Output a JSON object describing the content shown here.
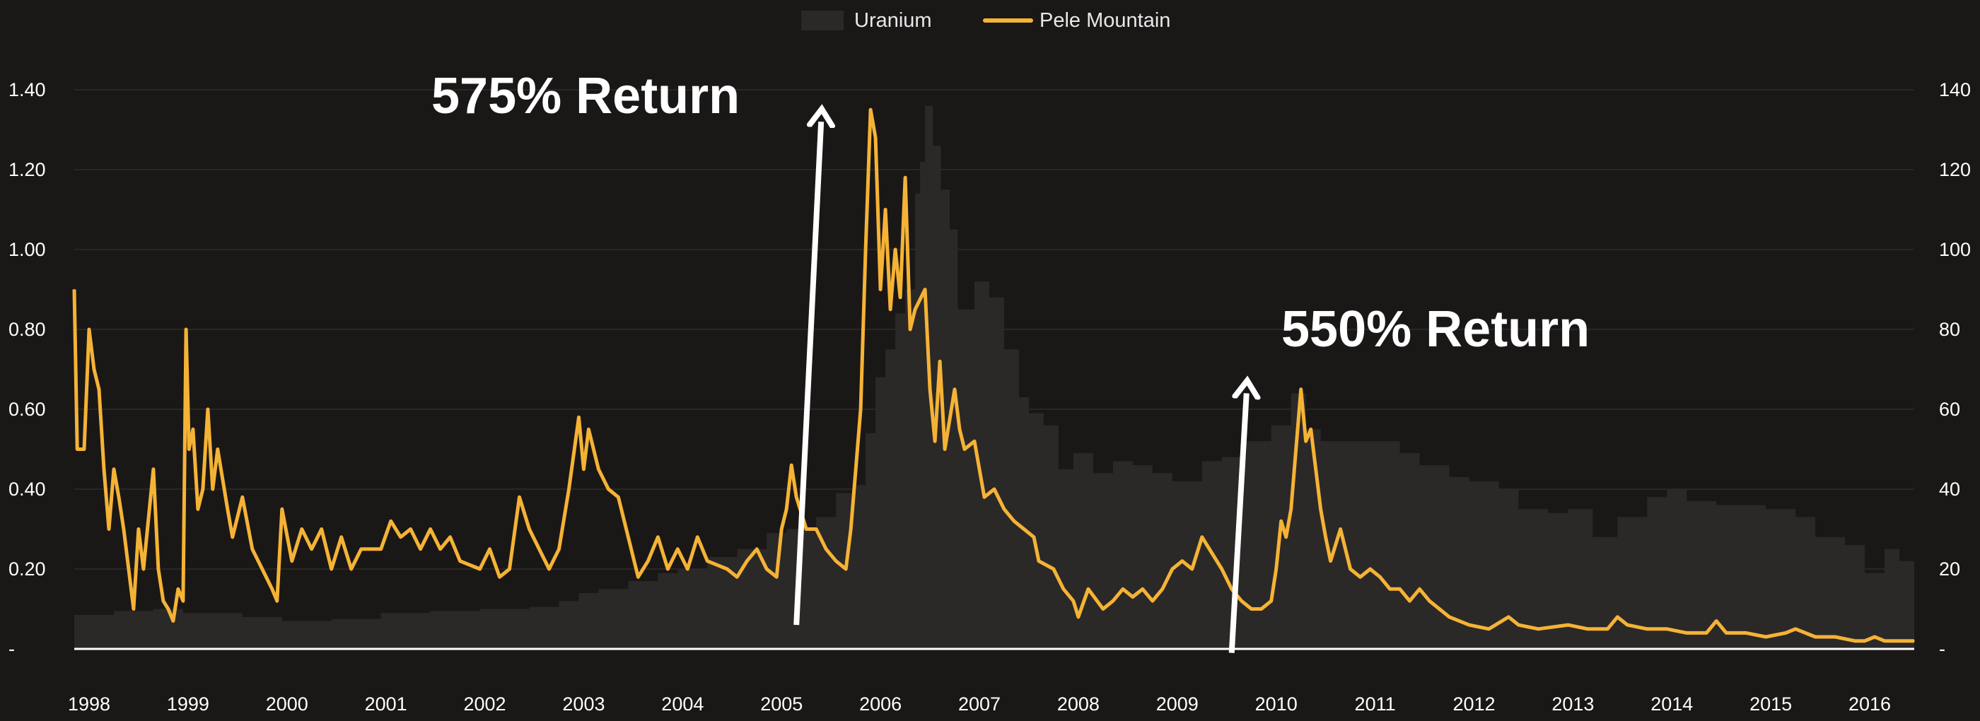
{
  "chart_data": {
    "type": "line",
    "title": "",
    "xlabel": "",
    "ylabel_left": "",
    "ylabel_right": "",
    "x_range": [
      1997.9,
      2016.5
    ],
    "ylim_left": [
      0,
      1.4
    ],
    "ylim_right": [
      0,
      140
    ],
    "grid": true,
    "legend_position": "top-center",
    "x_tick_labels": [
      "1998",
      "1999",
      "2000",
      "2001",
      "2002",
      "2003",
      "2004",
      "2005",
      "2006",
      "2007",
      "2008",
      "2009",
      "2010",
      "2011",
      "2012",
      "2013",
      "2014",
      "2015",
      "2016"
    ],
    "y_left_tick_labels": [
      "-",
      "0.20",
      "0.40",
      "0.60",
      "0.80",
      "1.00",
      "1.20",
      "1.40"
    ],
    "y_right_tick_labels": [
      "-",
      "20",
      "40",
      "60",
      "80",
      "100",
      "120",
      "140"
    ],
    "legend": [
      {
        "name": "Uranium",
        "color": "#2b2828"
      },
      {
        "name": "Pele Mountain",
        "color": "#f5b335"
      }
    ],
    "series": [
      {
        "name": "Uranium",
        "kind": "area-step",
        "axis": "right",
        "color": "#2b2828",
        "points": [
          [
            1997.9,
            8.5
          ],
          [
            1998.3,
            9.5
          ],
          [
            1998.7,
            10
          ],
          [
            1999.0,
            9
          ],
          [
            1999.3,
            9
          ],
          [
            1999.6,
            8
          ],
          [
            2000.0,
            7
          ],
          [
            2000.5,
            7.5
          ],
          [
            2001.0,
            9
          ],
          [
            2001.5,
            9.5
          ],
          [
            2002.0,
            10
          ],
          [
            2002.5,
            10.5
          ],
          [
            2002.8,
            12
          ],
          [
            2003.0,
            14
          ],
          [
            2003.2,
            15
          ],
          [
            2003.5,
            17
          ],
          [
            2003.8,
            19
          ],
          [
            2004.0,
            20
          ],
          [
            2004.3,
            23
          ],
          [
            2004.6,
            25
          ],
          [
            2004.9,
            29
          ],
          [
            2005.1,
            30
          ],
          [
            2005.4,
            33
          ],
          [
            2005.6,
            39
          ],
          [
            2005.8,
            41
          ],
          [
            2005.9,
            54
          ],
          [
            2006.0,
            68
          ],
          [
            2006.1,
            75
          ],
          [
            2006.2,
            84
          ],
          [
            2006.3,
            90
          ],
          [
            2006.4,
            114
          ],
          [
            2006.45,
            122
          ],
          [
            2006.5,
            136
          ],
          [
            2006.58,
            126
          ],
          [
            2006.66,
            115
          ],
          [
            2006.75,
            105
          ],
          [
            2006.83,
            85
          ],
          [
            2006.92,
            85
          ],
          [
            2007.0,
            92
          ],
          [
            2007.15,
            88
          ],
          [
            2007.3,
            75
          ],
          [
            2007.45,
            63
          ],
          [
            2007.55,
            59
          ],
          [
            2007.7,
            56
          ],
          [
            2007.85,
            45
          ],
          [
            2008.0,
            49
          ],
          [
            2008.2,
            44
          ],
          [
            2008.4,
            47
          ],
          [
            2008.6,
            46
          ],
          [
            2008.8,
            44
          ],
          [
            2009.0,
            42
          ],
          [
            2009.15,
            42
          ],
          [
            2009.3,
            47
          ],
          [
            2009.5,
            48
          ],
          [
            2009.75,
            52
          ],
          [
            2010.0,
            56
          ],
          [
            2010.2,
            64
          ],
          [
            2010.35,
            55
          ],
          [
            2010.5,
            52
          ],
          [
            2010.7,
            52
          ],
          [
            2011.0,
            52
          ],
          [
            2011.3,
            49
          ],
          [
            2011.5,
            46
          ],
          [
            2011.8,
            43
          ],
          [
            2012.0,
            42
          ],
          [
            2012.3,
            40
          ],
          [
            2012.5,
            35
          ],
          [
            2012.8,
            34
          ],
          [
            2013.0,
            35
          ],
          [
            2013.25,
            28
          ],
          [
            2013.5,
            33
          ],
          [
            2013.8,
            38
          ],
          [
            2014.0,
            40
          ],
          [
            2014.2,
            37
          ],
          [
            2014.5,
            36
          ],
          [
            2014.8,
            36
          ],
          [
            2015.0,
            35
          ],
          [
            2015.3,
            33
          ],
          [
            2015.5,
            28
          ],
          [
            2015.8,
            26
          ],
          [
            2016.0,
            19
          ],
          [
            2016.2,
            25
          ],
          [
            2016.35,
            22
          ],
          [
            2016.5,
            20
          ]
        ]
      },
      {
        "name": "Pele Mountain",
        "kind": "line",
        "axis": "left",
        "color": "#f5b335",
        "points": [
          [
            1997.9,
            0.9
          ],
          [
            1997.93,
            0.5
          ],
          [
            1998.0,
            0.5
          ],
          [
            1998.05,
            0.8
          ],
          [
            1998.1,
            0.7
          ],
          [
            1998.15,
            0.65
          ],
          [
            1998.2,
            0.45
          ],
          [
            1998.25,
            0.3
          ],
          [
            1998.3,
            0.45
          ],
          [
            1998.35,
            0.38
          ],
          [
            1998.4,
            0.3
          ],
          [
            1998.45,
            0.2
          ],
          [
            1998.5,
            0.1
          ],
          [
            1998.55,
            0.3
          ],
          [
            1998.6,
            0.2
          ],
          [
            1998.7,
            0.45
          ],
          [
            1998.75,
            0.2
          ],
          [
            1998.8,
            0.12
          ],
          [
            1998.85,
            0.1
          ],
          [
            1998.9,
            0.07
          ],
          [
            1998.95,
            0.15
          ],
          [
            1999.0,
            0.12
          ],
          [
            1999.03,
            0.8
          ],
          [
            1999.06,
            0.5
          ],
          [
            1999.1,
            0.55
          ],
          [
            1999.15,
            0.35
          ],
          [
            1999.2,
            0.4
          ],
          [
            1999.25,
            0.6
          ],
          [
            1999.3,
            0.4
          ],
          [
            1999.35,
            0.5
          ],
          [
            1999.45,
            0.35
          ],
          [
            1999.5,
            0.28
          ],
          [
            1999.6,
            0.38
          ],
          [
            1999.7,
            0.25
          ],
          [
            1999.8,
            0.2
          ],
          [
            1999.9,
            0.15
          ],
          [
            1999.95,
            0.12
          ],
          [
            2000.0,
            0.35
          ],
          [
            2000.1,
            0.22
          ],
          [
            2000.2,
            0.3
          ],
          [
            2000.3,
            0.25
          ],
          [
            2000.4,
            0.3
          ],
          [
            2000.5,
            0.2
          ],
          [
            2000.6,
            0.28
          ],
          [
            2000.7,
            0.2
          ],
          [
            2000.8,
            0.25
          ],
          [
            2001.0,
            0.25
          ],
          [
            2001.1,
            0.32
          ],
          [
            2001.2,
            0.28
          ],
          [
            2001.3,
            0.3
          ],
          [
            2001.4,
            0.25
          ],
          [
            2001.5,
            0.3
          ],
          [
            2001.6,
            0.25
          ],
          [
            2001.7,
            0.28
          ],
          [
            2001.8,
            0.22
          ],
          [
            2002.0,
            0.2
          ],
          [
            2002.1,
            0.25
          ],
          [
            2002.2,
            0.18
          ],
          [
            2002.3,
            0.2
          ],
          [
            2002.4,
            0.38
          ],
          [
            2002.5,
            0.3
          ],
          [
            2002.6,
            0.25
          ],
          [
            2002.7,
            0.2
          ],
          [
            2002.8,
            0.25
          ],
          [
            2002.9,
            0.4
          ],
          [
            2003.0,
            0.58
          ],
          [
            2003.05,
            0.45
          ],
          [
            2003.1,
            0.55
          ],
          [
            2003.2,
            0.45
          ],
          [
            2003.3,
            0.4
          ],
          [
            2003.4,
            0.38
          ],
          [
            2003.5,
            0.28
          ],
          [
            2003.6,
            0.18
          ],
          [
            2003.7,
            0.22
          ],
          [
            2003.8,
            0.28
          ],
          [
            2003.9,
            0.2
          ],
          [
            2004.0,
            0.25
          ],
          [
            2004.1,
            0.2
          ],
          [
            2004.2,
            0.28
          ],
          [
            2004.3,
            0.22
          ],
          [
            2004.5,
            0.2
          ],
          [
            2004.6,
            0.18
          ],
          [
            2004.7,
            0.22
          ],
          [
            2004.8,
            0.25
          ],
          [
            2004.9,
            0.2
          ],
          [
            2005.0,
            0.18
          ],
          [
            2005.05,
            0.3
          ],
          [
            2005.1,
            0.35
          ],
          [
            2005.15,
            0.46
          ],
          [
            2005.2,
            0.38
          ],
          [
            2005.3,
            0.3
          ],
          [
            2005.4,
            0.3
          ],
          [
            2005.5,
            0.25
          ],
          [
            2005.6,
            0.22
          ],
          [
            2005.7,
            0.2
          ],
          [
            2005.75,
            0.3
          ],
          [
            2005.8,
            0.45
          ],
          [
            2005.85,
            0.6
          ],
          [
            2005.9,
            1.0
          ],
          [
            2005.95,
            1.35
          ],
          [
            2006.0,
            1.28
          ],
          [
            2006.05,
            0.9
          ],
          [
            2006.1,
            1.1
          ],
          [
            2006.15,
            0.85
          ],
          [
            2006.2,
            1.0
          ],
          [
            2006.25,
            0.88
          ],
          [
            2006.3,
            1.18
          ],
          [
            2006.35,
            0.8
          ],
          [
            2006.4,
            0.85
          ],
          [
            2006.5,
            0.9
          ],
          [
            2006.55,
            0.65
          ],
          [
            2006.6,
            0.52
          ],
          [
            2006.65,
            0.72
          ],
          [
            2006.7,
            0.5
          ],
          [
            2006.8,
            0.65
          ],
          [
            2006.85,
            0.55
          ],
          [
            2006.9,
            0.5
          ],
          [
            2007.0,
            0.52
          ],
          [
            2007.1,
            0.38
          ],
          [
            2007.2,
            0.4
          ],
          [
            2007.3,
            0.35
          ],
          [
            2007.4,
            0.32
          ],
          [
            2007.5,
            0.3
          ],
          [
            2007.6,
            0.28
          ],
          [
            2007.65,
            0.22
          ],
          [
            2007.8,
            0.2
          ],
          [
            2007.9,
            0.15
          ],
          [
            2008.0,
            0.12
          ],
          [
            2008.05,
            0.08
          ],
          [
            2008.15,
            0.15
          ],
          [
            2008.3,
            0.1
          ],
          [
            2008.4,
            0.12
          ],
          [
            2008.5,
            0.15
          ],
          [
            2008.6,
            0.13
          ],
          [
            2008.7,
            0.15
          ],
          [
            2008.8,
            0.12
          ],
          [
            2008.9,
            0.15
          ],
          [
            2009.0,
            0.2
          ],
          [
            2009.1,
            0.22
          ],
          [
            2009.2,
            0.2
          ],
          [
            2009.3,
            0.28
          ],
          [
            2009.4,
            0.24
          ],
          [
            2009.5,
            0.2
          ],
          [
            2009.6,
            0.15
          ],
          [
            2009.7,
            0.12
          ],
          [
            2009.8,
            0.1
          ],
          [
            2009.9,
            0.1
          ],
          [
            2010.0,
            0.12
          ],
          [
            2010.05,
            0.2
          ],
          [
            2010.1,
            0.32
          ],
          [
            2010.15,
            0.28
          ],
          [
            2010.2,
            0.35
          ],
          [
            2010.25,
            0.5
          ],
          [
            2010.3,
            0.65
          ],
          [
            2010.35,
            0.52
          ],
          [
            2010.4,
            0.55
          ],
          [
            2010.45,
            0.45
          ],
          [
            2010.5,
            0.35
          ],
          [
            2010.55,
            0.28
          ],
          [
            2010.6,
            0.22
          ],
          [
            2010.7,
            0.3
          ],
          [
            2010.8,
            0.2
          ],
          [
            2010.9,
            0.18
          ],
          [
            2011.0,
            0.2
          ],
          [
            2011.1,
            0.18
          ],
          [
            2011.2,
            0.15
          ],
          [
            2011.3,
            0.15
          ],
          [
            2011.4,
            0.12
          ],
          [
            2011.5,
            0.15
          ],
          [
            2011.6,
            0.12
          ],
          [
            2011.7,
            0.1
          ],
          [
            2011.8,
            0.08
          ],
          [
            2012.0,
            0.06
          ],
          [
            2012.2,
            0.05
          ],
          [
            2012.4,
            0.08
          ],
          [
            2012.5,
            0.06
          ],
          [
            2012.7,
            0.05
          ],
          [
            2013.0,
            0.06
          ],
          [
            2013.2,
            0.05
          ],
          [
            2013.4,
            0.05
          ],
          [
            2013.5,
            0.08
          ],
          [
            2013.6,
            0.06
          ],
          [
            2013.8,
            0.05
          ],
          [
            2014.0,
            0.05
          ],
          [
            2014.2,
            0.04
          ],
          [
            2014.4,
            0.04
          ],
          [
            2014.5,
            0.07
          ],
          [
            2014.6,
            0.04
          ],
          [
            2014.8,
            0.04
          ],
          [
            2015.0,
            0.03
          ],
          [
            2015.2,
            0.04
          ],
          [
            2015.3,
            0.05
          ],
          [
            2015.5,
            0.03
          ],
          [
            2015.7,
            0.03
          ],
          [
            2015.9,
            0.02
          ],
          [
            2016.0,
            0.02
          ],
          [
            2016.1,
            0.03
          ],
          [
            2016.2,
            0.02
          ],
          [
            2016.3,
            0.02
          ],
          [
            2016.5,
            0.02
          ]
        ]
      }
    ],
    "annotations": [
      {
        "text": "575% Return",
        "arrow_from": [
          2005.2,
          0.06
        ],
        "arrow_to": [
          2005.45,
          1.32
        ]
      },
      {
        "text": "550% Return",
        "arrow_from": [
          2009.6,
          -0.01
        ],
        "arrow_to": [
          2009.75,
          0.64
        ]
      }
    ]
  }
}
